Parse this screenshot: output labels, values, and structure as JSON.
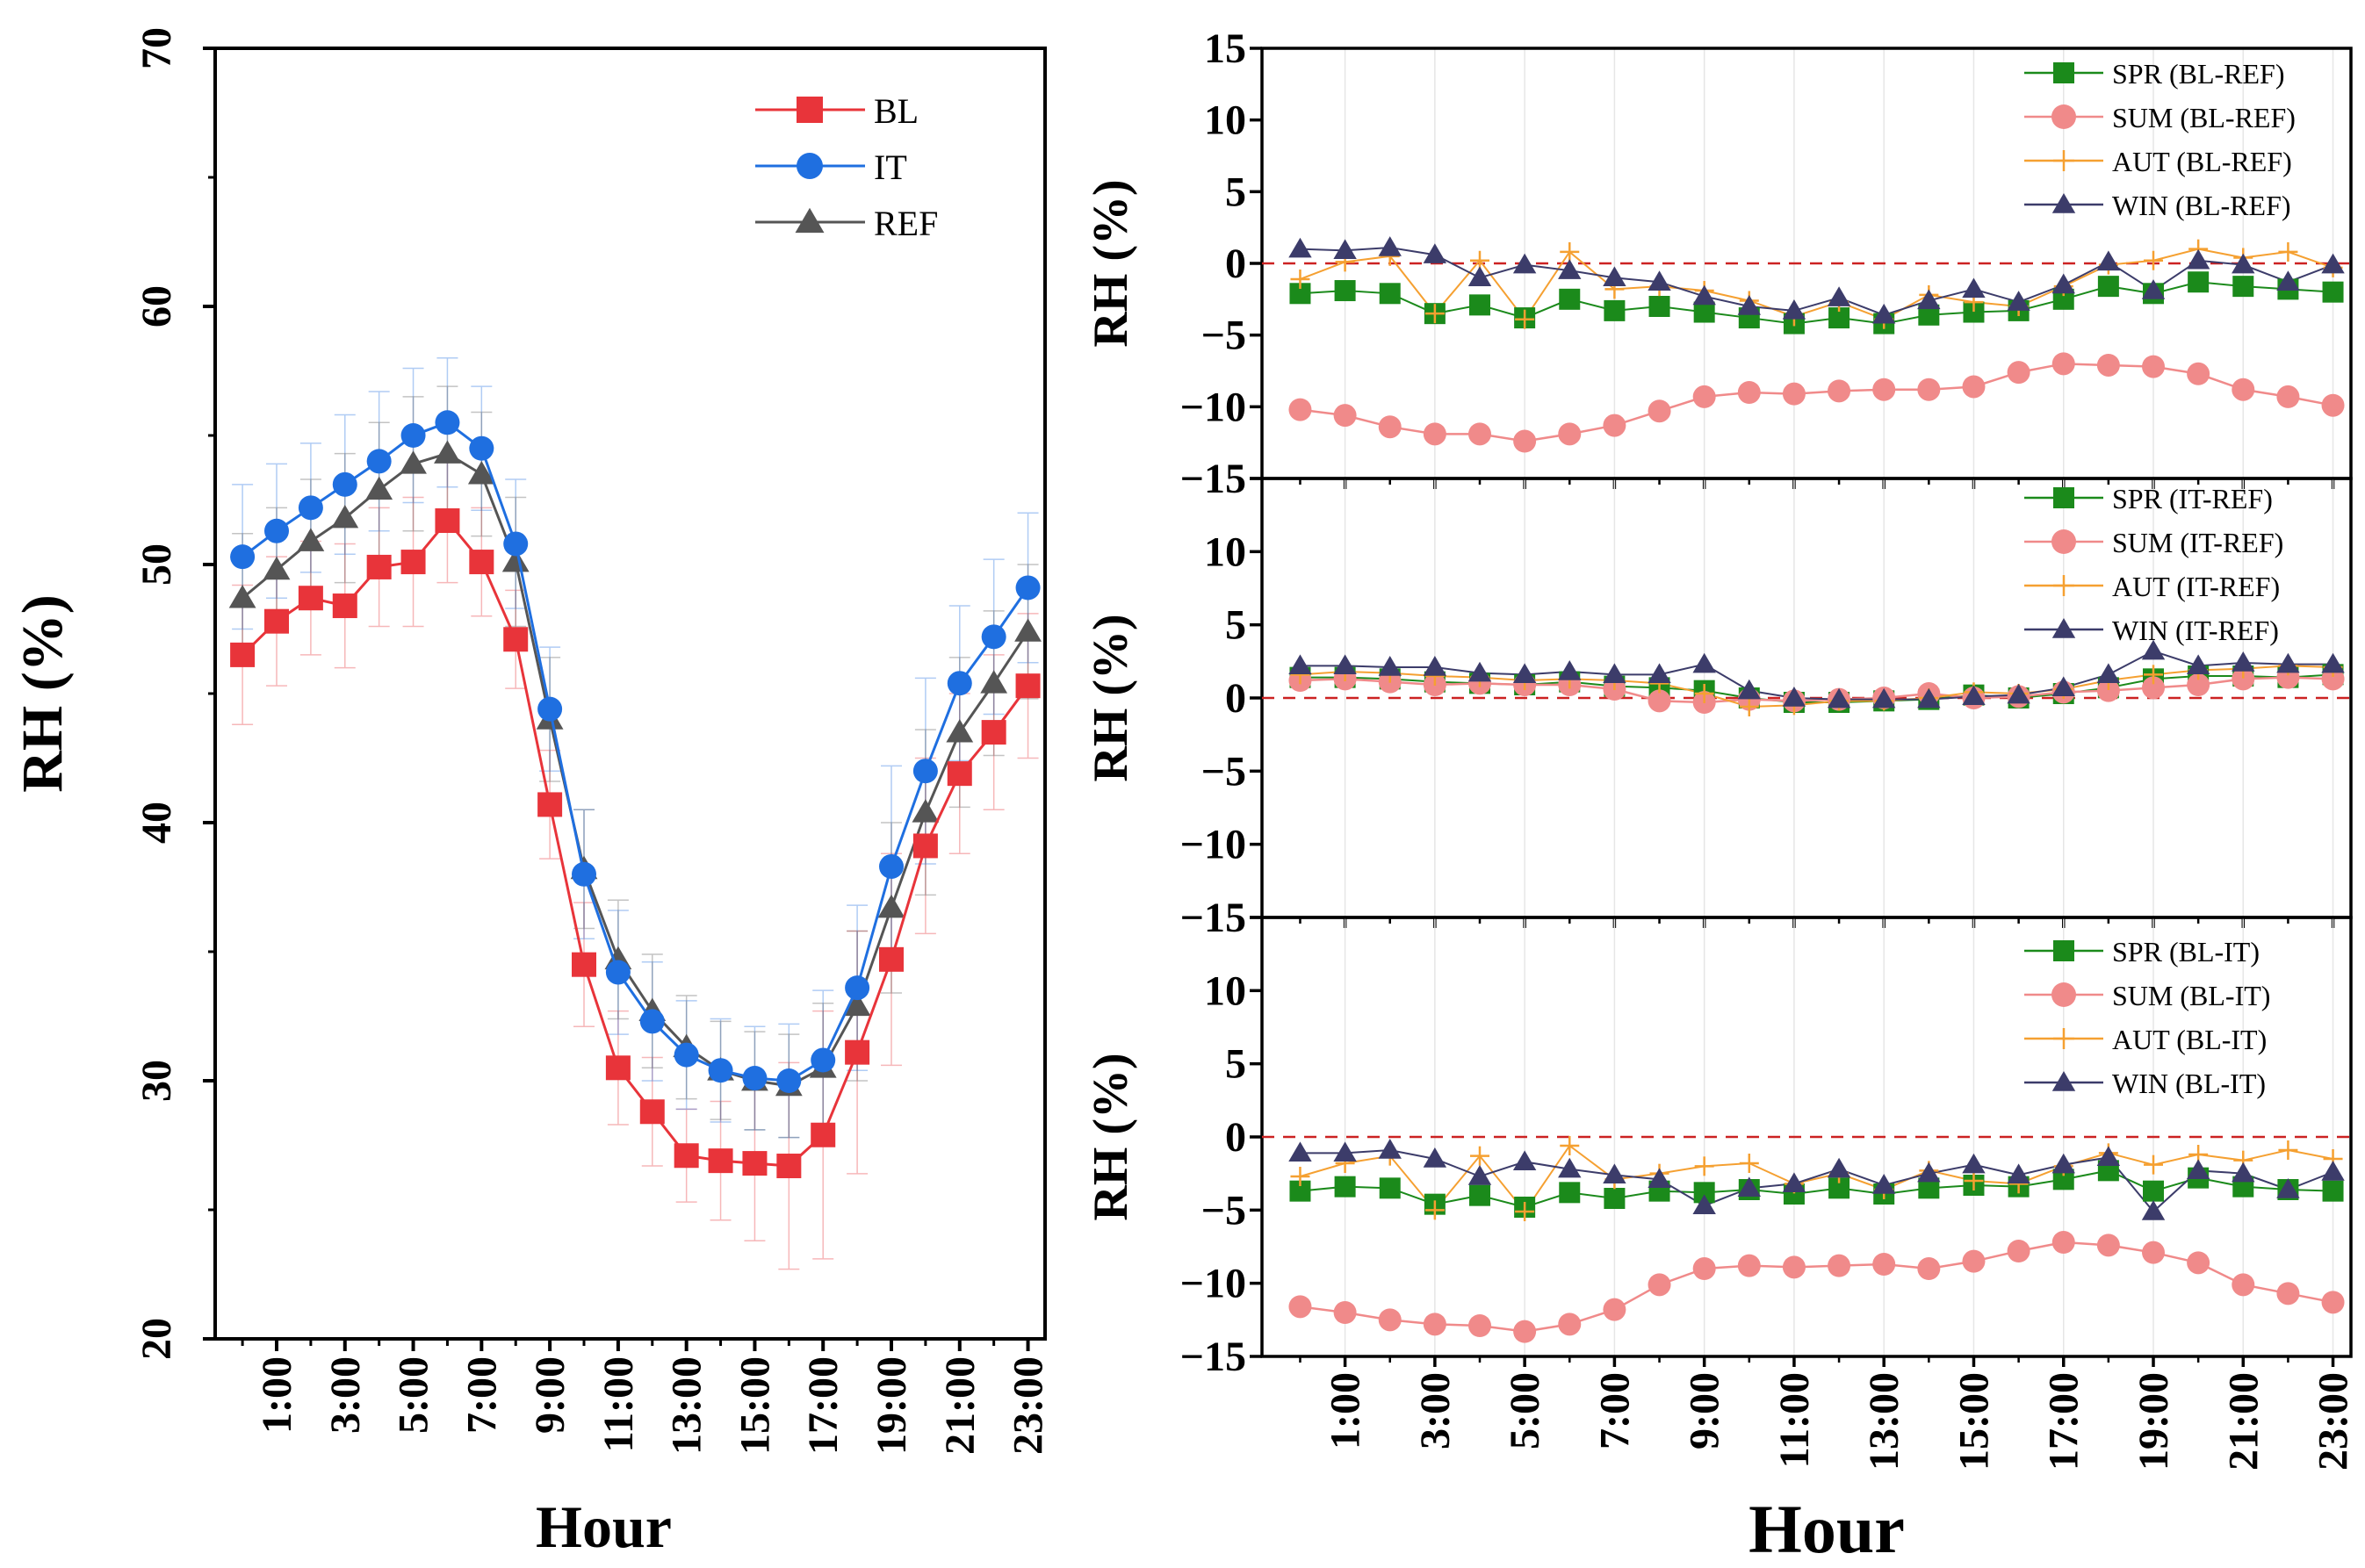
{
  "chart_data": [
    {
      "type": "line",
      "panel": "left",
      "ylabel": "RH (%)",
      "xlabel": "Hour",
      "ylim": [
        20,
        70
      ],
      "yticks": [
        20,
        30,
        40,
        50,
        60,
        70
      ],
      "x": [
        0,
        1,
        2,
        3,
        4,
        5,
        6,
        7,
        8,
        9,
        10,
        11,
        12,
        13,
        14,
        15,
        16,
        17,
        18,
        19,
        20,
        21,
        22,
        23
      ],
      "xtick_labels": [
        "1:00",
        "3:00",
        "5:00",
        "7:00",
        "9:00",
        "11:00",
        "13:00",
        "15:00",
        "17:00",
        "19:00",
        "21:00",
        "23:00"
      ],
      "series": [
        {
          "name": "BL",
          "color": "#e8343a",
          "marker": "square",
          "values": [
            46.5,
            47.8,
            48.7,
            48.4,
            49.9,
            50.1,
            51.7,
            50.1,
            47.1,
            40.7,
            34.5,
            30.5,
            28.8,
            27.1,
            26.9,
            26.8,
            26.7,
            27.9,
            31.1,
            34.7,
            39.1,
            41.9,
            43.5,
            45.3
          ],
          "err": [
            2.7,
            2.5,
            2.2,
            2.4,
            2.3,
            2.5,
            2.4,
            2.1,
            1.9,
            2.1,
            2.4,
            2.2,
            2.1,
            1.8,
            2.3,
            3.0,
            4.0,
            4.8,
            4.7,
            4.1,
            3.4,
            3.1,
            3.0,
            2.8
          ]
        },
        {
          "name": "IT",
          "color": "#1f6fe0",
          "marker": "circle",
          "values": [
            50.3,
            51.3,
            52.2,
            53.1,
            54.0,
            55.0,
            55.5,
            54.5,
            50.8,
            44.4,
            38.0,
            34.2,
            32.3,
            31.0,
            30.4,
            30.1,
            30.0,
            30.8,
            33.6,
            38.3,
            42.0,
            45.4,
            47.2,
            49.1
          ],
          "err": [
            2.8,
            2.6,
            2.5,
            2.7,
            2.7,
            2.6,
            2.5,
            2.4,
            2.5,
            2.4,
            2.5,
            2.4,
            2.3,
            2.1,
            2.0,
            2.0,
            2.2,
            2.7,
            3.2,
            3.9,
            3.6,
            3.0,
            3.0,
            2.9
          ]
        },
        {
          "name": "REF",
          "color": "#555555",
          "marker": "triangle",
          "values": [
            48.7,
            49.8,
            50.9,
            51.8,
            52.9,
            53.9,
            54.3,
            53.5,
            50.1,
            44.0,
            38.2,
            34.7,
            32.7,
            31.3,
            30.4,
            30.0,
            29.8,
            30.5,
            32.9,
            36.7,
            40.4,
            43.5,
            45.4,
            47.4
          ],
          "err": [
            2.5,
            2.4,
            2.4,
            2.5,
            2.6,
            2.6,
            2.6,
            2.4,
            2.5,
            2.4,
            2.3,
            2.3,
            2.2,
            2.0,
            1.9,
            1.9,
            2.0,
            2.5,
            2.9,
            3.3,
            3.2,
            2.9,
            2.8,
            2.6
          ]
        }
      ]
    },
    {
      "type": "line",
      "panel": "right-top",
      "ylabel": "RH (%)",
      "ylim": [
        -15,
        15
      ],
      "yticks": [
        15,
        10,
        5,
        0,
        -5,
        -10,
        -15
      ],
      "ytick_labels": [
        "15",
        "10",
        "5",
        "0",
        "−5",
        "−10",
        "−15"
      ],
      "reference_line": 0,
      "series": [
        {
          "name": "SPR (BL-REF)",
          "color": "#1b8a1b",
          "marker": "square",
          "values": [
            -2.1,
            -1.9,
            -2.1,
            -3.5,
            -2.9,
            -3.8,
            -2.5,
            -3.3,
            -3.0,
            -3.4,
            -3.8,
            -4.2,
            -3.8,
            -4.2,
            -3.6,
            -3.4,
            -3.3,
            -2.5,
            -1.6,
            -2.1,
            -1.3,
            -1.6,
            -1.8,
            -2.0
          ]
        },
        {
          "name": "SUM (BL-REF)",
          "color": "#f08a8a",
          "marker": "circle",
          "values": [
            -10.2,
            -10.6,
            -11.4,
            -11.9,
            -11.9,
            -12.4,
            -11.9,
            -11.3,
            -10.3,
            -9.3,
            -9.0,
            -9.1,
            -8.9,
            -8.8,
            -8.8,
            -8.6,
            -7.6,
            -7.0,
            -7.1,
            -7.2,
            -7.7,
            -8.8,
            -9.3,
            -9.9
          ]
        },
        {
          "name": "AUT (BL-REF)",
          "color": "#f5a031",
          "marker": "plus",
          "values": [
            -1.1,
            0.1,
            0.5,
            -3.5,
            0.2,
            -3.9,
            0.8,
            -1.8,
            -1.6,
            -1.9,
            -2.6,
            -3.7,
            -2.7,
            -3.9,
            -2.2,
            -2.7,
            -3.0,
            -1.6,
            -0.1,
            0.2,
            1.0,
            0.4,
            0.8,
            -0.3
          ]
        },
        {
          "name": "WIN (BL-REF)",
          "color": "#3c3c6a",
          "marker": "triangle",
          "values": [
            1.0,
            0.9,
            1.1,
            0.6,
            -1.0,
            -0.1,
            -0.5,
            -1.0,
            -1.3,
            -2.3,
            -3.0,
            -3.3,
            -2.4,
            -3.6,
            -2.6,
            -1.8,
            -2.7,
            -1.5,
            0.1,
            -1.9,
            0.2,
            -0.1,
            -1.3,
            -0.1
          ]
        }
      ]
    },
    {
      "type": "line",
      "panel": "right-middle",
      "ylabel": "RH (%)",
      "ylim": [
        -15,
        15
      ],
      "yticks": [
        15,
        10,
        5,
        0,
        -5,
        -10,
        -15
      ],
      "ytick_labels": [
        "",
        "10",
        "5",
        "0",
        "−5",
        "−10",
        "−15"
      ],
      "reference_line": 0,
      "series": [
        {
          "name": "SPR (IT-REF)",
          "color": "#1b8a1b",
          "marker": "square",
          "values": [
            1.4,
            1.4,
            1.3,
            1.1,
            1.0,
            0.9,
            1.1,
            0.8,
            0.7,
            0.5,
            0.0,
            -0.3,
            -0.3,
            -0.2,
            -0.1,
            0.2,
            0.0,
            0.3,
            0.7,
            1.3,
            1.5,
            1.5,
            1.4,
            1.6
          ]
        },
        {
          "name": "SUM (IT-REF)",
          "color": "#f08a8a",
          "marker": "circle",
          "values": [
            1.2,
            1.3,
            1.1,
            0.9,
            1.0,
            0.9,
            0.9,
            0.6,
            -0.2,
            -0.3,
            -0.1,
            -0.2,
            -0.1,
            0.0,
            0.3,
            0.0,
            0.1,
            0.4,
            0.5,
            0.7,
            0.9,
            1.3,
            1.4,
            1.3
          ]
        },
        {
          "name": "AUT (IT-REF)",
          "color": "#f5a031",
          "marker": "plus",
          "values": [
            1.6,
            1.8,
            1.7,
            1.5,
            1.4,
            1.2,
            1.3,
            1.2,
            1.0,
            0.3,
            -0.6,
            -0.5,
            -0.2,
            -0.2,
            0.0,
            0.4,
            0.3,
            0.6,
            1.2,
            1.6,
            1.9,
            2.0,
            2.2,
            2.1
          ]
        },
        {
          "name": "WIN (IT-REF)",
          "color": "#3c3c6a",
          "marker": "triangle",
          "values": [
            2.2,
            2.2,
            2.1,
            2.1,
            1.7,
            1.6,
            1.8,
            1.6,
            1.6,
            2.3,
            0.5,
            0.0,
            -0.1,
            -0.1,
            -0.1,
            0.1,
            0.2,
            0.7,
            1.6,
            3.2,
            2.2,
            2.4,
            2.3,
            2.3
          ]
        }
      ]
    },
    {
      "type": "line",
      "panel": "right-bottom",
      "ylabel": "RH (%)",
      "xlabel": "Hour",
      "ylim": [
        -15,
        15
      ],
      "yticks": [
        15,
        10,
        5,
        0,
        -5,
        -10,
        -15
      ],
      "ytick_labels": [
        "",
        "10",
        "5",
        "0",
        "−5",
        "−10",
        "−15"
      ],
      "reference_line": 0,
      "xtick_labels": [
        "1:00",
        "3:00",
        "5:00",
        "7:00",
        "9:00",
        "11:00",
        "13:00",
        "15:00",
        "17:00",
        "19:00",
        "21:00",
        "23:00"
      ],
      "series": [
        {
          "name": "SPR (BL-IT)",
          "color": "#1b8a1b",
          "marker": "square",
          "values": [
            -3.7,
            -3.4,
            -3.5,
            -4.6,
            -4.0,
            -4.8,
            -3.8,
            -4.2,
            -3.7,
            -3.8,
            -3.6,
            -3.9,
            -3.5,
            -3.9,
            -3.5,
            -3.3,
            -3.4,
            -2.9,
            -2.3,
            -3.7,
            -2.8,
            -3.4,
            -3.6,
            -3.7
          ]
        },
        {
          "name": "SUM (BL-IT)",
          "color": "#f08a8a",
          "marker": "circle",
          "values": [
            -11.6,
            -12.0,
            -12.5,
            -12.8,
            -12.9,
            -13.3,
            -12.8,
            -11.8,
            -10.1,
            -9.0,
            -8.8,
            -8.9,
            -8.8,
            -8.7,
            -9.0,
            -8.5,
            -7.8,
            -7.2,
            -7.4,
            -7.9,
            -8.6,
            -10.1,
            -10.7,
            -11.3
          ]
        },
        {
          "name": "AUT (BL-IT)",
          "color": "#f5a031",
          "marker": "plus",
          "values": [
            -2.7,
            -1.8,
            -1.3,
            -5.0,
            -1.3,
            -5.1,
            -0.6,
            -2.9,
            -2.5,
            -2.0,
            -1.8,
            -3.2,
            -2.5,
            -3.6,
            -2.3,
            -3.0,
            -3.2,
            -2.0,
            -1.1,
            -1.9,
            -1.2,
            -1.6,
            -0.9,
            -1.5
          ]
        },
        {
          "name": "WIN (BL-IT)",
          "color": "#3c3c6a",
          "marker": "triangle",
          "values": [
            -1.1,
            -1.1,
            -0.9,
            -1.5,
            -2.7,
            -1.7,
            -2.2,
            -2.6,
            -2.9,
            -4.7,
            -3.5,
            -3.2,
            -2.2,
            -3.3,
            -2.5,
            -1.9,
            -2.6,
            -1.9,
            -1.4,
            -5.1,
            -2.3,
            -2.5,
            -3.6,
            -2.4
          ]
        }
      ]
    }
  ]
}
